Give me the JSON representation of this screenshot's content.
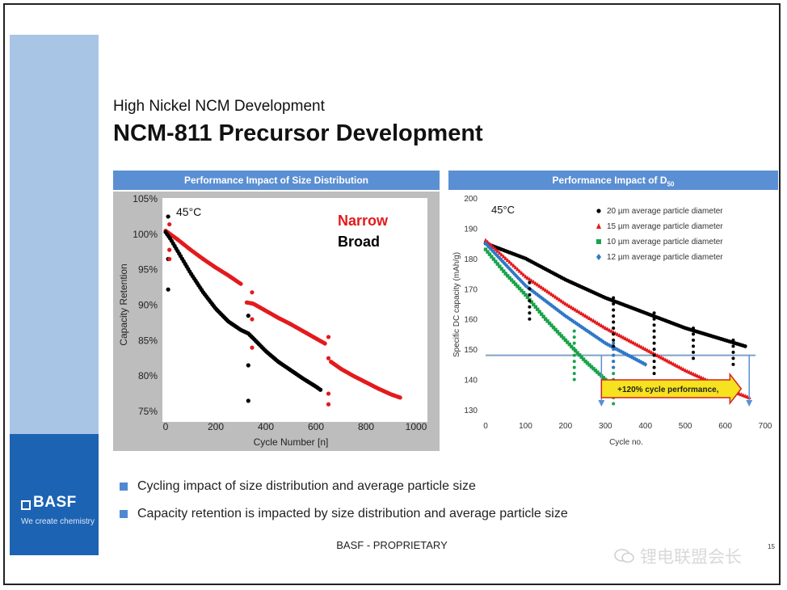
{
  "slide": {
    "subtitle": "High Nickel NCM Development",
    "title": "NCM-811 Precursor Development",
    "footer": "BASF - PROPRIETARY",
    "page_number": "15",
    "watermark": "锂电联盟会长",
    "brand": {
      "name": "BASF",
      "tagline": "We create chemistry",
      "color": "#1d63b3",
      "accent": "#a9c5e6"
    },
    "bullets": [
      "Cycling impact of size distribution and average particle size",
      "Capacity retention is impacted by size distribution and average particle size"
    ]
  },
  "chart_data": [
    {
      "type": "scatter",
      "title": "Performance Impact of Size Distribution",
      "xlabel": "Cycle Number [n]",
      "ylabel": "Capacity Retention",
      "xlim": [
        0,
        1000
      ],
      "ylim": [
        75,
        105
      ],
      "xticks": [
        "0",
        "200",
        "400",
        "600",
        "800",
        "1000"
      ],
      "yticks": [
        "75%",
        "80%",
        "85%",
        "90%",
        "95%",
        "100%",
        "105%"
      ],
      "annotation": "45°C",
      "grid": false,
      "legend": "top-right",
      "series": [
        {
          "name": "Narrow",
          "color": "#e31a1c",
          "x": [
            0,
            50,
            100,
            150,
            200,
            250,
            300,
            320,
            350,
            400,
            450,
            500,
            550,
            600,
            640,
            660,
            700,
            750,
            800,
            850,
            900,
            940
          ],
          "y": [
            100.5,
            99.2,
            97.8,
            96.5,
            95.3,
            94.2,
            93.0,
            90.4,
            90.2,
            89.2,
            88.2,
            87.3,
            86.3,
            85.3,
            84.5,
            82.0,
            81.0,
            80.0,
            79.1,
            78.2,
            77.4,
            76.9
          ]
        },
        {
          "name": "Broad",
          "color": "#000000",
          "x": [
            0,
            20,
            50,
            100,
            150,
            200,
            250,
            300,
            330,
            350,
            400,
            450,
            500,
            550,
            600,
            620
          ],
          "y": [
            100.3,
            99.3,
            97.5,
            94.5,
            91.8,
            89.5,
            87.7,
            86.5,
            86.0,
            85.3,
            83.5,
            82.0,
            80.8,
            79.6,
            78.5,
            78.0
          ]
        }
      ]
    },
    {
      "type": "scatter",
      "title": "Performance Impact of D",
      "title_subscript": "50",
      "xlabel": "Cycle no.",
      "ylabel": "Specific DC capacity (mAh/g)",
      "xlim": [
        0,
        700
      ],
      "ylim": [
        130,
        200
      ],
      "xticks": [
        "0",
        "100",
        "200",
        "300",
        "400",
        "500",
        "600",
        "700"
      ],
      "yticks": [
        "130",
        "140",
        "150",
        "160",
        "170",
        "180",
        "190",
        "200"
      ],
      "annotation": "45°C",
      "reference_line": 148,
      "callout": "+120% cycle performance,",
      "grid": false,
      "legend": "top-right",
      "series": [
        {
          "name": "20 µm average particle diameter",
          "color": "#000000",
          "marker": "circle",
          "x": [
            0,
            100,
            200,
            300,
            400,
            500,
            600,
            650
          ],
          "y": [
            185,
            180,
            173,
            167,
            162,
            157,
            153,
            151
          ]
        },
        {
          "name": "15 µm average particle diameter",
          "color": "#e31a1c",
          "marker": "triangle",
          "x": [
            0,
            100,
            200,
            300,
            400,
            500,
            600,
            660
          ],
          "y": [
            186,
            174,
            165,
            157,
            150,
            143,
            137,
            134
          ]
        },
        {
          "name": "10 µm average particle diameter",
          "color": "#1aa34a",
          "marker": "square",
          "x": [
            0,
            50,
            100,
            150,
            200,
            250,
            300,
            340
          ],
          "y": [
            183,
            175,
            168,
            160,
            153,
            146,
            140,
            135
          ]
        },
        {
          "name": "12 µm average particle diameter",
          "color": "#2f78c9",
          "marker": "diamond",
          "x": [
            0,
            100,
            200,
            300,
            400
          ],
          "y": [
            185,
            171,
            161,
            152,
            145
          ]
        }
      ]
    }
  ]
}
